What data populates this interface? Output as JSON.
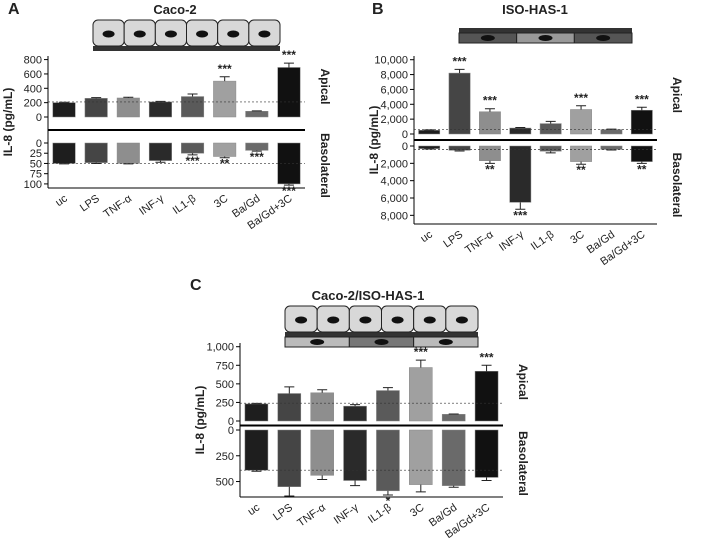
{
  "chart_data": [
    {
      "type": "bar",
      "label": "A",
      "title": "Caco-2",
      "y_label": "IL-8 (pg/mL)",
      "categories": [
        "uc",
        "LPS",
        "TNF-α",
        "INF-γ",
        "IL1-β",
        "3C",
        "Ba/Gd",
        "Ba/Gd+3C"
      ],
      "colors": [
        "#1e1e1e",
        "#454545",
        "#8e8e8e",
        "#2a2a2a",
        "#5a5a5a",
        "#a0a0a0",
        "#6a6a6a",
        "#111111"
      ],
      "apical": {
        "name": "Apical",
        "values": [
          200,
          260,
          265,
          210,
          285,
          500,
          80,
          690
        ],
        "errors": [
          5,
          10,
          10,
          8,
          35,
          60,
          6,
          60
        ],
        "significance": [
          null,
          null,
          null,
          null,
          null,
          "***",
          null,
          "***"
        ],
        "baseline": 210,
        "ylim": [
          0,
          850
        ],
        "yticks": [
          0,
          200,
          400,
          600,
          800
        ]
      },
      "basolateral": {
        "name": "Basolateral",
        "values": [
          50,
          48,
          50,
          43,
          25,
          33,
          18,
          100
        ],
        "errors": [
          1,
          2,
          1,
          4,
          4,
          3,
          2,
          3
        ],
        "significance": [
          null,
          null,
          null,
          null,
          "***",
          "**",
          "***",
          "***"
        ],
        "baseline": 50,
        "ylim": [
          0,
          110
        ],
        "yticks": [
          0,
          25,
          50,
          75,
          100
        ]
      }
    },
    {
      "type": "bar",
      "label": "B",
      "title": "ISO-HAS-1",
      "y_label": "IL-8 (pg/mL)",
      "categories": [
        "uc",
        "LPS",
        "TNF-α",
        "INF-γ",
        "IL1-β",
        "3C",
        "Ba/Gd",
        "Ba/Gd+3C"
      ],
      "colors": [
        "#1e1e1e",
        "#454545",
        "#8e8e8e",
        "#2a2a2a",
        "#5a5a5a",
        "#a0a0a0",
        "#6a6a6a",
        "#111111"
      ],
      "apical": {
        "name": "Apical",
        "values": [
          500,
          8200,
          3000,
          800,
          1400,
          3300,
          600,
          3200
        ],
        "errors": [
          60,
          500,
          400,
          80,
          300,
          500,
          60,
          400
        ],
        "significance": [
          null,
          "***",
          "***",
          null,
          null,
          "***",
          null,
          "***"
        ],
        "baseline": 600,
        "ylim": [
          0,
          10500
        ],
        "yticks": [
          0,
          {
            "value": 2000,
            "label": "2,000"
          },
          {
            "value": 4000,
            "label": "4,000"
          },
          {
            "value": 6000,
            "label": "6,000"
          },
          {
            "value": 8000,
            "label": "8,000"
          },
          {
            "value": 10000,
            "label": "10,000"
          }
        ]
      },
      "basolateral": {
        "name": "Basolateral",
        "values": [
          300,
          500,
          1700,
          6500,
          600,
          1800,
          400,
          1800
        ],
        "errors": [
          50,
          80,
          300,
          800,
          200,
          300,
          60,
          200
        ],
        "significance": [
          null,
          null,
          "**",
          "***",
          null,
          "**",
          null,
          "**"
        ],
        "baseline": 400,
        "ylim": [
          0,
          9000
        ],
        "yticks": [
          0,
          {
            "value": 2000,
            "label": "2,000"
          },
          {
            "value": 4000,
            "label": "4,000"
          },
          {
            "value": 6000,
            "label": "6,000"
          },
          {
            "value": 8000,
            "label": "8,000"
          }
        ]
      }
    },
    {
      "type": "bar",
      "label": "C",
      "title": "Caco-2/ISO-HAS-1",
      "y_label": "IL-8 (pg/mL)",
      "categories": [
        "uc",
        "LPS",
        "TNF-α",
        "INF-γ",
        "IL1-β",
        "3C",
        "Ba/Gd",
        "Ba/Gd+3C"
      ],
      "colors": [
        "#1e1e1e",
        "#454545",
        "#8e8e8e",
        "#2a2a2a",
        "#5a5a5a",
        "#a0a0a0",
        "#6a6a6a",
        "#111111"
      ],
      "apical": {
        "name": "Apical",
        "values": [
          230,
          370,
          380,
          200,
          410,
          720,
          90,
          670
        ],
        "errors": [
          8,
          90,
          40,
          20,
          40,
          100,
          5,
          80
        ],
        "significance": [
          null,
          null,
          null,
          null,
          null,
          "***",
          null,
          "***"
        ],
        "baseline": 240,
        "ylim": [
          0,
          1050
        ],
        "yticks": [
          0,
          250,
          500,
          750,
          {
            "value": 1000,
            "label": "1,000"
          }
        ]
      },
      "basolateral": {
        "name": "Basolateral",
        "values": [
          390,
          550,
          440,
          490,
          590,
          530,
          540,
          460
        ],
        "errors": [
          10,
          90,
          40,
          50,
          40,
          70,
          15,
          30
        ],
        "significance": [
          null,
          null,
          null,
          null,
          "*",
          null,
          null,
          null
        ],
        "baseline": 390,
        "ylim": [
          0,
          650
        ],
        "yticks": [
          0,
          250,
          500
        ]
      }
    }
  ]
}
